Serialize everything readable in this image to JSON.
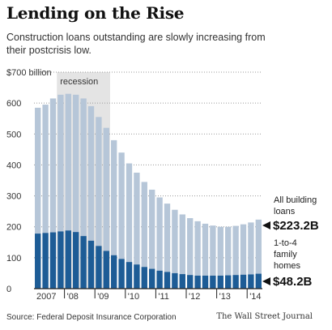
{
  "header": {
    "title": "Lending on the Rise",
    "subtitle": "Construction loans outstanding are slowly increasing from their postcrisis low."
  },
  "footer": {
    "source": "Source: Federal Deposit Insurance Corporation",
    "credit": "The Wall Street Journal"
  },
  "colors": {
    "all_building_loans": "#b6c6d8",
    "one_to_four_family": "#1d5c96",
    "recession_shade": "#e4e4e4"
  },
  "chart_data": {
    "type": "bar",
    "title": "Lending on the Rise",
    "subtitle": "Construction loans outstanding are slowly increasing from their postcrisis low.",
    "ylim": [
      0,
      700
    ],
    "y_ticks": [
      0,
      100,
      200,
      300,
      400,
      500,
      600,
      700
    ],
    "y_tick_labels": [
      "0",
      "100",
      "200",
      "300",
      "400",
      "500",
      "600",
      "$700 billion"
    ],
    "x_tick_labels": [
      "2007",
      "'08",
      "'09",
      "'10",
      "'11",
      "'12",
      "'13",
      "'14"
    ],
    "grid": true,
    "categories": [
      "2007Q1",
      "2007Q2",
      "2007Q3",
      "2007Q4",
      "2008Q1",
      "2008Q2",
      "2008Q3",
      "2008Q4",
      "2009Q1",
      "2009Q2",
      "2009Q3",
      "2009Q4",
      "2010Q1",
      "2010Q2",
      "2010Q3",
      "2010Q4",
      "2011Q1",
      "2011Q2",
      "2011Q3",
      "2011Q4",
      "2012Q1",
      "2012Q2",
      "2012Q3",
      "2012Q4",
      "2013Q1",
      "2013Q2",
      "2013Q3",
      "2013Q4",
      "2014Q1",
      "2014Q2"
    ],
    "series": [
      {
        "name": "All building loans",
        "values": [
          585,
          595,
          615,
          627,
          630,
          627,
          615,
          590,
          555,
          520,
          480,
          440,
          405,
          375,
          345,
          320,
          295,
          275,
          255,
          240,
          228,
          218,
          210,
          204,
          200,
          200,
          203,
          208,
          214,
          223.2
        ]
      },
      {
        "name": "1-to-4 family homes",
        "values": [
          178,
          180,
          182,
          185,
          188,
          183,
          170,
          155,
          138,
          122,
          108,
          96,
          86,
          78,
          70,
          64,
          58,
          54,
          50,
          47,
          44,
          42,
          42,
          42,
          42,
          43,
          44,
          45,
          46,
          48.2
        ]
      }
    ],
    "recession": {
      "label": "recession",
      "start": "2007Q4",
      "end": "2009Q2"
    },
    "annotations": [
      {
        "label": "All building loans",
        "value_label": "$223.2B"
      },
      {
        "label": "1-to-4 family homes",
        "value_label": "$48.2B"
      }
    ]
  }
}
